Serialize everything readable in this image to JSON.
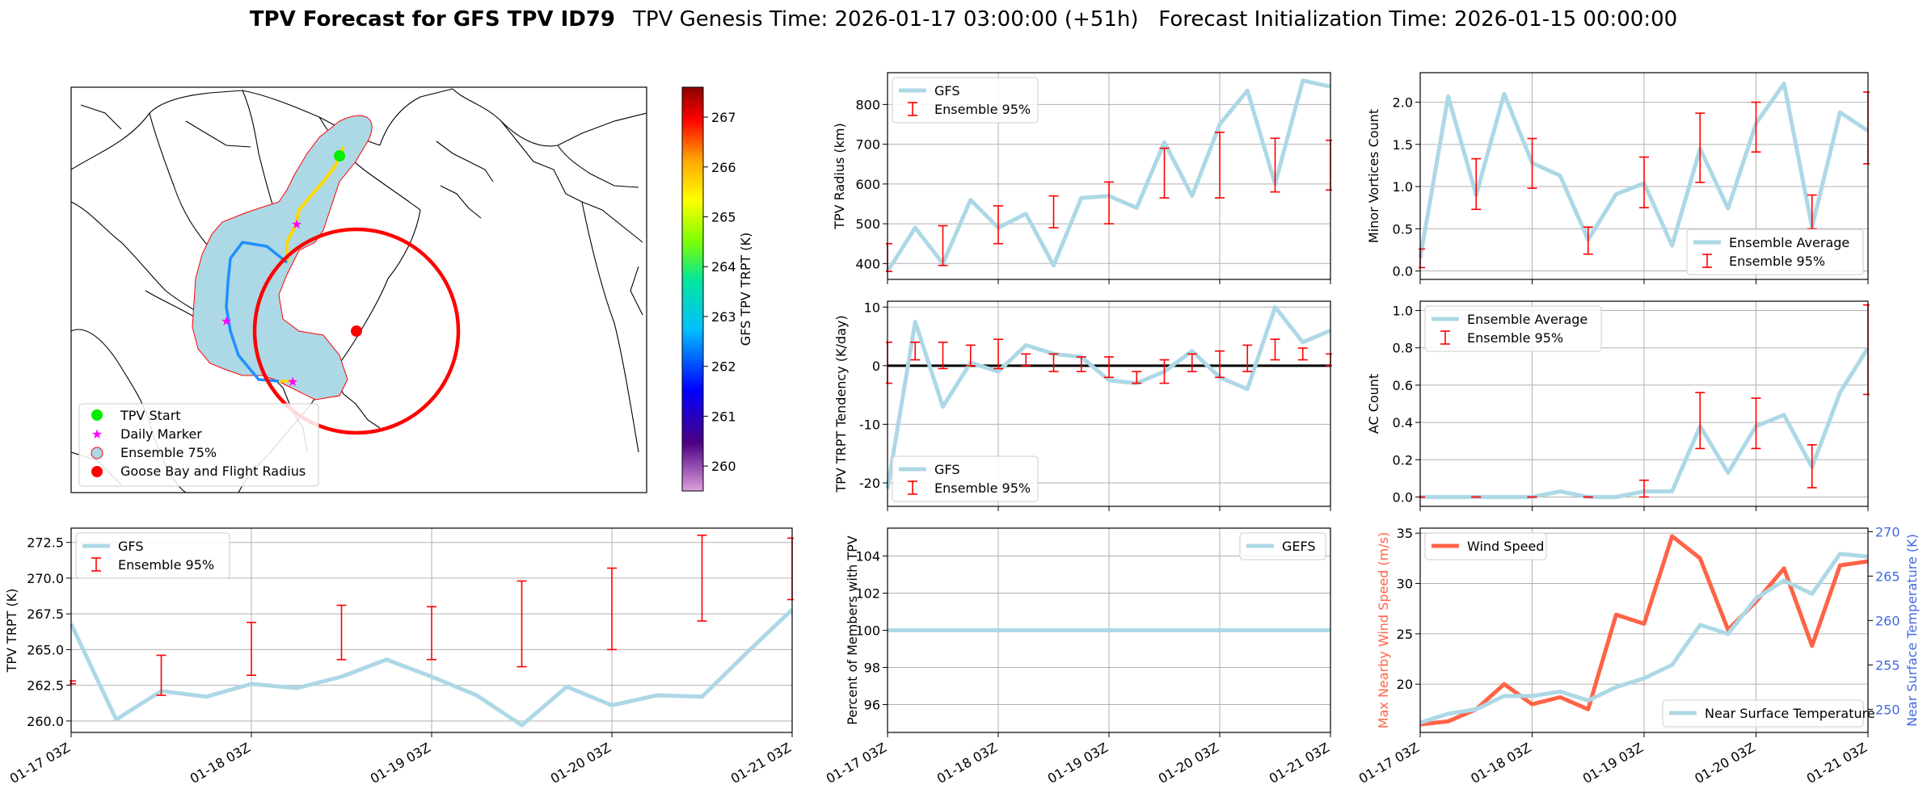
{
  "figure": {
    "title_bold": "TPV Forecast for GFS TPV ID79",
    "title_rest": "TPV Genesis Time: 2026-01-17 03:00:00 (+51h)   Forecast Initialization Time: 2026-01-15 00:00:00"
  },
  "colors": {
    "gfs_line": "#add8e6",
    "ensemble_bar": "#ff0000",
    "wind": "#ff6347",
    "temp_axis": "#4169e1",
    "track_blob": "#add8e6",
    "flight_circle": "#ff0000"
  },
  "time_ticks": [
    "01-17 03Z",
    "01-18 03Z",
    "01-19 03Z",
    "01-20 03Z",
    "01-21 03Z"
  ],
  "map": {
    "legend": [
      "TPV Start",
      "Daily Marker",
      "Ensemble 75%",
      "Goose Bay and Flight Radius"
    ],
    "colorbar_label": "GFS TPV TRPT (K)",
    "colorbar_ticks": [
      260,
      261,
      262,
      263,
      264,
      265,
      266,
      267
    ],
    "colorbar_range": [
      259.5,
      267.6
    ]
  },
  "chart_data": [
    {
      "id": "radius",
      "type": "line",
      "ylabel": "TPV Radius (km)",
      "ylim": [
        360,
        880
      ],
      "yticks": [
        400,
        500,
        600,
        700,
        800
      ],
      "x": [
        0,
        6,
        12,
        18,
        24,
        30,
        36,
        42,
        48,
        54,
        60,
        66,
        72,
        78,
        84,
        90,
        96
      ],
      "series": [
        {
          "name": "GFS",
          "values": [
            380,
            490,
            400,
            560,
            490,
            525,
            395,
            565,
            570,
            540,
            705,
            570,
            750,
            835,
            600,
            860,
            845
          ]
        }
      ],
      "ensemble": {
        "name": "Ensemble 95%",
        "x": [
          0,
          12,
          24,
          36,
          48,
          60,
          72,
          84,
          96
        ],
        "low": [
          380,
          395,
          450,
          490,
          500,
          565,
          565,
          580,
          585
        ],
        "high": [
          450,
          495,
          545,
          570,
          605,
          690,
          730,
          715,
          710
        ]
      },
      "legend": "top-left",
      "grid": true
    },
    {
      "id": "tendency",
      "type": "line",
      "ylabel": "TPV TRPT Tendency (K/day)",
      "ylim": [
        -24,
        11
      ],
      "yticks": [
        -20,
        -10,
        0,
        10
      ],
      "x": [
        0,
        6,
        12,
        18,
        24,
        30,
        36,
        42,
        48,
        54,
        60,
        66,
        72,
        78,
        84,
        90,
        96
      ],
      "series": [
        {
          "name": "GFS",
          "values": [
            -21,
            7.5,
            -7,
            0.5,
            -1,
            3.5,
            2,
            1.5,
            -2.5,
            -3,
            -1,
            2.5,
            -2,
            -4,
            10,
            4,
            6
          ]
        }
      ],
      "ensemble": {
        "name": "Ensemble 95%",
        "x": [
          0,
          6,
          12,
          18,
          24,
          30,
          36,
          42,
          48,
          54,
          60,
          66,
          72,
          78,
          84,
          90,
          96
        ],
        "low": [
          -3,
          1,
          -0.5,
          0,
          -0.5,
          0,
          -1,
          -1,
          -2,
          -3,
          -3,
          -1,
          -2,
          -1,
          1,
          1,
          0
        ],
        "high": [
          4,
          4,
          4,
          3.5,
          4.5,
          2,
          2,
          1.5,
          1.5,
          -1,
          1,
          2,
          2.5,
          3.5,
          4.5,
          3,
          2
        ]
      },
      "zero_line": true,
      "legend": "bottom-left",
      "grid": true
    },
    {
      "id": "trpt",
      "type": "line",
      "ylabel": "TPV TRPT (K)",
      "ylim": [
        259.2,
        273.5
      ],
      "yticks": [
        260.0,
        262.5,
        265.0,
        267.5,
        270.0,
        272.5
      ],
      "x": [
        0,
        6,
        12,
        18,
        24,
        30,
        36,
        42,
        48,
        54,
        60,
        66,
        72,
        78,
        84,
        90,
        96
      ],
      "series": [
        {
          "name": "GFS",
          "values": [
            266.8,
            260.1,
            262.1,
            261.7,
            262.6,
            262.3,
            263.1,
            264.3,
            263.1,
            261.8,
            259.7,
            262.4,
            261.1,
            261.8,
            261.7,
            264.8,
            267.8
          ]
        }
      ],
      "ensemble": {
        "name": "Ensemble 95%",
        "x": [
          0,
          12,
          24,
          36,
          48,
          60,
          72,
          84,
          96
        ],
        "low": [
          262.6,
          261.8,
          263.2,
          264.3,
          264.3,
          263.8,
          265.0,
          267.0,
          268.5
        ],
        "high": [
          262.8,
          264.6,
          266.9,
          268.1,
          268.0,
          269.8,
          270.7,
          273.0,
          272.8
        ]
      },
      "legend": "top-left",
      "grid": true
    },
    {
      "id": "members",
      "type": "line",
      "ylabel": "Percent of Members with TPV",
      "ylim": [
        94.5,
        105.5
      ],
      "yticks": [
        96,
        98,
        100,
        102,
        104
      ],
      "x": [
        0,
        96
      ],
      "series": [
        {
          "name": "GEFS",
          "values": [
            100,
            100
          ]
        }
      ],
      "legend": "top-right",
      "grid": true
    },
    {
      "id": "minor",
      "type": "line",
      "ylabel": "Minor Vortices Count",
      "ylim": [
        -0.1,
        2.35
      ],
      "yticks": [
        0.0,
        0.5,
        1.0,
        1.5,
        2.0
      ],
      "x": [
        0,
        6,
        12,
        18,
        24,
        30,
        36,
        42,
        48,
        54,
        60,
        66,
        72,
        78,
        84,
        90,
        96
      ],
      "series": [
        {
          "name": "Ensemble Average",
          "values": [
            0.15,
            2.07,
            0.9,
            2.1,
            1.28,
            1.13,
            0.37,
            0.91,
            1.04,
            0.3,
            1.45,
            0.74,
            1.75,
            2.22,
            0.52,
            1.88,
            1.66
          ]
        }
      ],
      "ensemble": {
        "name": "Ensemble 95%",
        "x": [
          0,
          12,
          24,
          36,
          48,
          60,
          72,
          84,
          96
        ],
        "low": [
          0.04,
          0.73,
          0.98,
          0.2,
          0.75,
          1.05,
          1.41,
          0.5,
          1.27
        ],
        "high": [
          0.26,
          1.33,
          1.57,
          0.52,
          1.35,
          1.87,
          2.0,
          0.9,
          2.12
        ]
      },
      "legend": "bottom-right",
      "grid": true
    },
    {
      "id": "ac",
      "type": "line",
      "ylabel": "AC Count",
      "ylim": [
        -0.05,
        1.05
      ],
      "yticks": [
        0.0,
        0.2,
        0.4,
        0.6,
        0.8,
        1.0
      ],
      "x": [
        0,
        6,
        12,
        18,
        24,
        30,
        36,
        42,
        48,
        54,
        60,
        66,
        72,
        78,
        84,
        90,
        96
      ],
      "series": [
        {
          "name": "Ensemble Average",
          "values": [
            0,
            0,
            0,
            0,
            0,
            0.03,
            0,
            0,
            0.03,
            0.03,
            0.38,
            0.13,
            0.38,
            0.44,
            0.16,
            0.56,
            0.8
          ]
        }
      ],
      "ensemble": {
        "name": "Ensemble 95%",
        "x": [
          0,
          12,
          24,
          36,
          48,
          60,
          72,
          84,
          96
        ],
        "low": [
          0,
          0,
          0,
          0,
          0,
          0.26,
          0.26,
          0.05,
          0.55
        ],
        "high": [
          0,
          0,
          0,
          0,
          0.09,
          0.56,
          0.53,
          0.28,
          1.03
        ]
      },
      "legend": "top-left",
      "grid": true
    },
    {
      "id": "wind",
      "type": "line",
      "ylabel": "Max Nearby Wind Speed (m/s)",
      "ylim": [
        15.2,
        35.5
      ],
      "yticks": [
        20,
        25,
        30,
        35
      ],
      "y2label": "Near Surface Temperature (K)",
      "y2lim": [
        247.4,
        270.4
      ],
      "y2ticks": [
        250,
        255,
        260,
        265,
        270
      ],
      "x": [
        0,
        6,
        12,
        18,
        24,
        30,
        36,
        42,
        48,
        54,
        60,
        66,
        72,
        78,
        84,
        90,
        96
      ],
      "series": [
        {
          "name": "Wind Speed",
          "values": [
            16,
            16.3,
            17.5,
            20,
            18,
            18.7,
            17.5,
            26.9,
            26,
            34.7,
            32.5,
            25.4,
            28.2,
            31.5,
            23.8,
            31.8,
            32.2
          ],
          "axis": "left"
        },
        {
          "name": "Near Surface Temperature",
          "values": [
            248.5,
            249.5,
            250,
            251.5,
            251.5,
            252,
            251,
            252.5,
            253.5,
            255,
            259.5,
            258.5,
            262.5,
            264.5,
            263,
            267.5,
            267.2
          ],
          "axis": "right"
        }
      ],
      "legend": "top-left / bottom-right",
      "grid": true
    }
  ]
}
